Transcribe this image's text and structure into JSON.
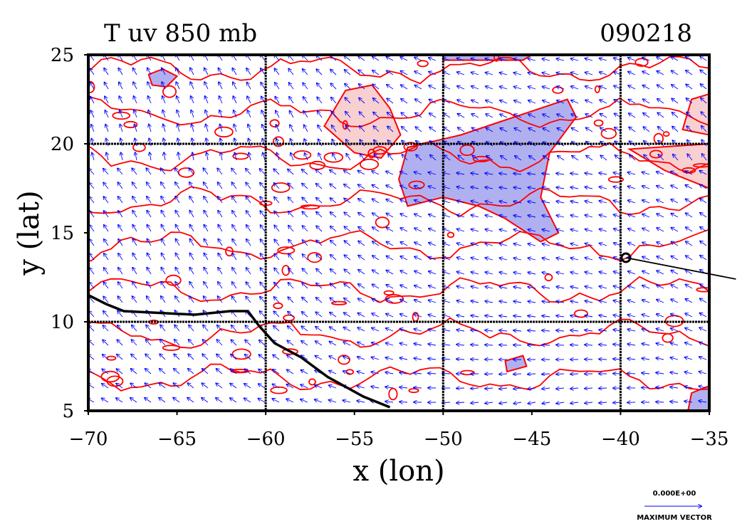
{
  "chart_data": {
    "type": "contour-vector-map",
    "title": "T uv 850 mb",
    "date_label": "090218",
    "xlabel": "x (lon)",
    "ylabel": "y (lat)",
    "xlim": [
      -70,
      -35
    ],
    "ylim": [
      5,
      25
    ],
    "x_ticks": [
      -70,
      -65,
      -60,
      -55,
      -50,
      -45,
      -40,
      -35
    ],
    "x_tick_labels": [
      "−70",
      "−65",
      "−60",
      "−55",
      "−50",
      "−45",
      "−40",
      "−35"
    ],
    "y_ticks": [
      5,
      10,
      15,
      20,
      25
    ],
    "y_tick_labels": [
      "5",
      "10",
      "15",
      "20",
      "25"
    ],
    "grid_lon": [
      -60,
      -50,
      -40
    ],
    "grid_lat": [
      10,
      20
    ],
    "reference_vector": {
      "value_label": "0.000E+00",
      "caption": "MAXIMUM VECTOR"
    },
    "colors": {
      "contour": "#ff0000",
      "vector": "#0000ff",
      "cold_fill": "#b0b0f0",
      "warm_fill": "#f8d0d0",
      "coastline": "#000000"
    },
    "cold_regions": [
      {
        "points": [
          [
            -52,
            19.8
          ],
          [
            -49,
            20.5
          ],
          [
            -46,
            21.5
          ],
          [
            -43,
            22.5
          ],
          [
            -42.5,
            21.5
          ],
          [
            -44,
            19.5
          ],
          [
            -44.5,
            17
          ],
          [
            -43.5,
            15
          ],
          [
            -44.5,
            14.5
          ],
          [
            -46.5,
            15.8
          ],
          [
            -48,
            16.5
          ],
          [
            -50,
            17
          ],
          [
            -52,
            16.5
          ],
          [
            -52.5,
            18
          ]
        ]
      },
      {
        "points": [
          [
            -66.6,
            23.9
          ],
          [
            -65.8,
            24.2
          ],
          [
            -65,
            23.8
          ],
          [
            -65.6,
            23.2
          ],
          [
            -66.4,
            23.3
          ]
        ]
      },
      {
        "points": [
          [
            -50,
            25
          ],
          [
            -45,
            25
          ],
          [
            -45.5,
            24.7
          ],
          [
            -50,
            24.7
          ]
        ]
      },
      {
        "points": [
          [
            -36,
            6
          ],
          [
            -35,
            6.4
          ],
          [
            -35,
            5
          ],
          [
            -36.2,
            5
          ]
        ]
      },
      {
        "points": [
          [
            -46.5,
            7.8
          ],
          [
            -45.5,
            8.1
          ],
          [
            -45.3,
            7.5
          ],
          [
            -46.4,
            7.2
          ]
        ]
      }
    ],
    "warm_regions": [
      {
        "points": [
          [
            -56.7,
            21
          ],
          [
            -55.5,
            23
          ],
          [
            -54,
            23.3
          ],
          [
            -53,
            22
          ],
          [
            -52.4,
            20.5
          ],
          [
            -53.5,
            19.2
          ],
          [
            -55,
            19.5
          ]
        ]
      },
      {
        "points": [
          [
            -36,
            22.5
          ],
          [
            -35,
            22.8
          ],
          [
            -35,
            20.5
          ],
          [
            -36.5,
            20.8
          ]
        ]
      },
      {
        "points": [
          [
            -39.5,
            19.7
          ],
          [
            -35,
            20
          ],
          [
            -35,
            17.5
          ],
          [
            -37.5,
            18.5
          ]
        ]
      }
    ],
    "coastline": [
      [
        -70,
        11.5
      ],
      [
        -69,
        11
      ],
      [
        -68,
        10.6
      ],
      [
        -66,
        10.5
      ],
      [
        -64,
        10.4
      ],
      [
        -62,
        10.6
      ],
      [
        -61,
        10.6
      ],
      [
        -60.4,
        9.8
      ],
      [
        -59.5,
        8.8
      ],
      [
        -58,
        8
      ],
      [
        -56.5,
        6.9
      ],
      [
        -54.5,
        5.8
      ],
      [
        -53,
        5.2
      ]
    ],
    "track": [
      [
        -39.7,
        13.6
      ],
      [
        -33.5,
        12.4
      ]
    ]
  }
}
